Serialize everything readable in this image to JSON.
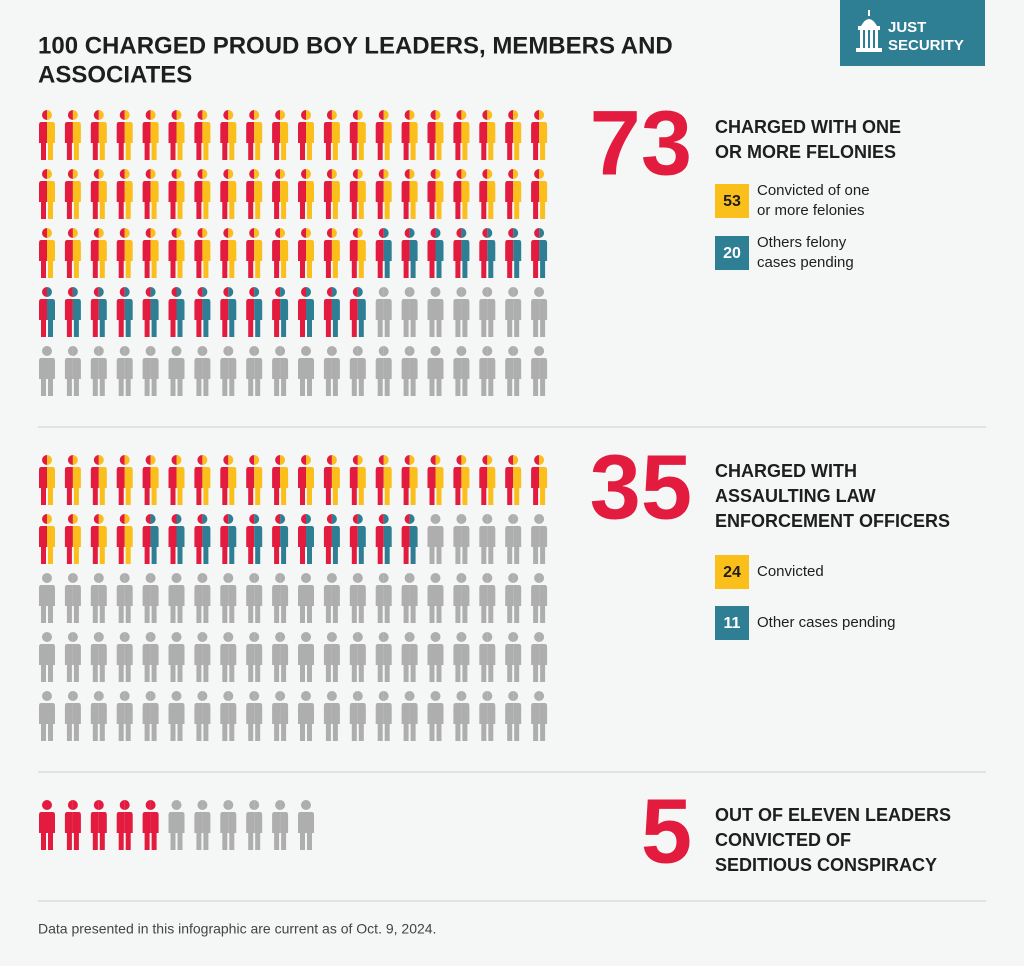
{
  "title": [
    "100 CHARGED PROUD BOY LEADERS, MEMBERS AND",
    "ASSOCIATES"
  ],
  "logo": [
    "JUST",
    "SECURITY"
  ],
  "note": "Data presented in this infographic are current as of Oct. 9, 2024.",
  "chart_data": [
    {
      "type": "pictogram",
      "value": 73,
      "label": [
        "CHARGED WITH ONE",
        "OR MORE FELONIES"
      ],
      "total": 100,
      "color": "#e31b3f",
      "other_color": "#aeaeae",
      "series": [
        {
          "name": [
            "Convicted of one",
            "or more felonies"
          ],
          "value": 53,
          "color": "#fbbf1c"
        },
        {
          "name": [
            "Others felony",
            "cases pending"
          ],
          "value": 20,
          "color": "#2f7f94"
        }
      ]
    },
    {
      "type": "pictogram",
      "value": 35,
      "label": [
        "CHARGED WITH",
        "ASSAULTING LAW",
        "ENFORCEMENT OFFICERS"
      ],
      "total": 100,
      "color": "#e31b3f",
      "other_color": "#aeaeae",
      "series": [
        {
          "name": [
            "Convicted"
          ],
          "value": 24,
          "color": "#fbbf1c"
        },
        {
          "name": [
            "Other cases pending"
          ],
          "value": 11,
          "color": "#2f7f94"
        }
      ]
    },
    {
      "type": "pictogram",
      "value": 5,
      "label": [
        "OUT OF ELEVEN LEADERS",
        "CONVICTED OF",
        "SEDITIOUS CONSPIRACY"
      ],
      "total": 11,
      "color": "#e31b3f",
      "other_color": "#aeaeae",
      "series": []
    }
  ]
}
